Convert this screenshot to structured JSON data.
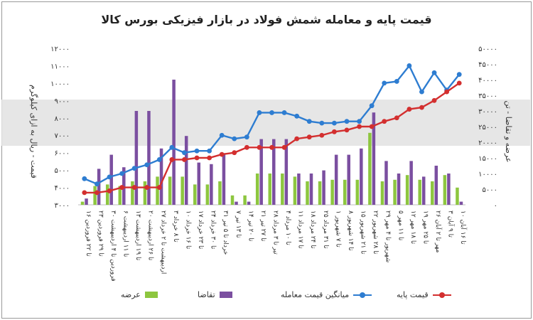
{
  "chart_data": {
    "type": "bar",
    "title": "قیمت پایه و معامله شمش فولاد در بازار فیزیکی بورس کالا",
    "ylabel_left": "قیمت - ریال به ازای کیلوگرم",
    "ylabel_right": "عرضه و تقاضا - تن",
    "left_ticks": [
      "۳۰۰۰",
      "۴۰۰۰",
      "۵۰۰۰",
      "۶۰۰۰",
      "۷۰۰۰",
      "۸۰۰۰",
      "۹۰۰۰",
      "۱۰۰۰۰",
      "۱۱۰۰۰",
      "۱۲۰۰۰"
    ],
    "right_ticks": [
      "۰",
      "۵۰۰۰",
      "۱۰۰۰۰",
      "۱۵۰۰۰",
      "۲۰۰۰۰",
      "۲۵۰۰۰",
      "۳۰۰۰۰",
      "۳۵۰۰۰",
      "۴۰۰۰۰",
      "۴۵۰۰۰",
      "۵۰۰۰۰"
    ],
    "ylim_left": [
      3000,
      12000
    ],
    "ylim_right": [
      0,
      50000
    ],
    "categories": [
      "۱۶ تا ۲۲ فروردین",
      "۲۳ تا ۲۹ فروردین",
      "۳۰ فروردین تا ۴ اردیبهشت",
      "۶ تا ۱۱ اردیبهشت",
      "۱۳ تا ۱۹ اردیبهشت",
      "۲۰ تا ۲۶ اردیبهشت",
      "۲۷ اردیبهشت تا ۲ خرداد",
      "۳ تا ۸ خرداد",
      "۱۰ تا ۱۶ خرداد",
      "۱۷ تا ۲۳ خرداد",
      "۲۴ تا ۳۰ خرداد",
      "۳۱ خرداد تا ۵ تیر",
      "۷ تا ۱۳ تیر",
      "۱۴ تا ۲۰ تیر",
      "۲۱ تا ۲۷ تیر",
      "۲۸ تیر تا ۳ مرداد",
      "۴ تا ۱۰ مرداد",
      "۱۱ تا ۱۷ مرداد",
      "۱۸ تا ۲۴ مرداد",
      "۲۵ تا ۳۱ مرداد",
      "۱ تا ۷ شهریور",
      "۸ تا ۱۴ شهریور",
      "۱۵ تا ۲۱ شهریور",
      "۲۲ تا ۲۸ شهریور",
      "۲۹ شهریور تا ۴ مهر",
      "۵ تا ۱۱ مهر",
      "۱۲ تا ۱۸ مهر",
      "۱۹ تا ۲۵ مهر",
      "۲۶ مهر تا ۲ آبان",
      "۳ تا ۹ آبان",
      "۱۰ تا ۱۶ آبان"
    ],
    "series": [
      {
        "name": "عرضه",
        "axis": "right",
        "kind": "bar",
        "color": "#8dc63f",
        "values": [
          1000,
          6000,
          6500,
          6000,
          7500,
          7500,
          9000,
          9000,
          9000,
          6500,
          6500,
          7500,
          3000,
          3000,
          10000,
          10000,
          10000,
          9000,
          7500,
          7500,
          8000,
          8000,
          8000,
          23000,
          7500,
          8000,
          9500,
          8000,
          7500,
          9500,
          5500
        ]
      },
      {
        "name": "تقاضا",
        "axis": "right",
        "kind": "bar",
        "color": "#7b4fa0",
        "values": [
          2000,
          11500,
          16000,
          12000,
          30000,
          30000,
          18000,
          40000,
          22000,
          13500,
          13000,
          16500,
          1000,
          1000,
          21000,
          21000,
          21000,
          10000,
          10000,
          11000,
          16000,
          16000,
          18000,
          29500,
          14000,
          10000,
          14000,
          9000,
          12500,
          10000,
          1000
        ]
      },
      {
        "name": "میانگین قیمت معامله",
        "axis": "left",
        "kind": "line",
        "color": "#2e7dd1",
        "values": [
          4500,
          4200,
          4600,
          4800,
          5100,
          5300,
          5600,
          6300,
          6000,
          6100,
          6100,
          7000,
          6800,
          6900,
          8300,
          8300,
          8300,
          8100,
          7800,
          7700,
          7700,
          7800,
          7800,
          8700,
          10000,
          10100,
          11000,
          9500,
          10600,
          9600,
          10500
        ]
      },
      {
        "name": "قیمت پایه",
        "axis": "left",
        "kind": "line",
        "color": "#d32f2f",
        "values": [
          3700,
          3700,
          3800,
          4000,
          4000,
          4000,
          4000,
          5600,
          5600,
          5700,
          5700,
          5900,
          6000,
          6300,
          6300,
          6300,
          6300,
          6800,
          6900,
          7000,
          7200,
          7300,
          7500,
          7500,
          7800,
          8000,
          8500,
          8600,
          9000,
          9500,
          10000
        ]
      }
    ],
    "legend_placement": "bottom",
    "grid": false
  },
  "legend": {
    "supply": "عرضه",
    "demand": "تقاضا",
    "avg_price": "میانگین قیمت معامله",
    "base_price": "قیمت پایه"
  }
}
